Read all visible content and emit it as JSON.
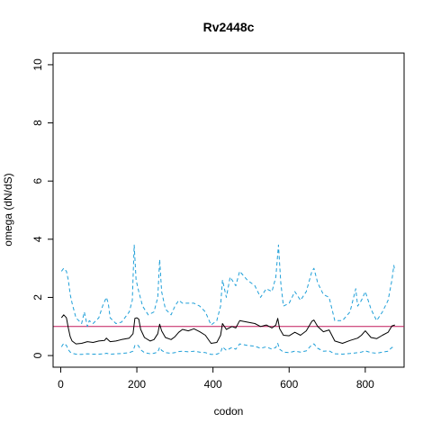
{
  "chart_data": {
    "type": "line",
    "title": "Rv2448c",
    "xlabel": "codon",
    "ylabel": "omega (dN/dS)",
    "xlim": [
      -20,
      902
    ],
    "ylim": [
      -0.4,
      10.4
    ],
    "x_ticks": [
      0,
      200,
      400,
      600,
      800
    ],
    "y_ticks": [
      0,
      2,
      4,
      6,
      8,
      10
    ],
    "x_tick_labels": [
      "0",
      "200",
      "400",
      "600",
      "800"
    ],
    "y_tick_labels": [
      "0",
      "2",
      "4",
      "6",
      "8",
      "10"
    ],
    "grid": false,
    "reference_line": {
      "y": 1.0,
      "color": "#c2185b"
    },
    "series": [
      {
        "style": "solid",
        "color": "#000000",
        "x": [
          2,
          8,
          15,
          20,
          25,
          30,
          40,
          55,
          70,
          85,
          100,
          115,
          120,
          130,
          145,
          160,
          180,
          190,
          195,
          200,
          205,
          210,
          220,
          235,
          245,
          255,
          260,
          265,
          275,
          290,
          300,
          310,
          320,
          335,
          350,
          365,
          380,
          395,
          410,
          420,
          425,
          435,
          450,
          460,
          470,
          490,
          510,
          525,
          540,
          555,
          565,
          570,
          575,
          585,
          600,
          615,
          630,
          645,
          660,
          665,
          675,
          690,
          705,
          720,
          740,
          760,
          780,
          790,
          800,
          815,
          830,
          845,
          860,
          870,
          878
        ],
        "y": [
          1.3,
          1.4,
          1.3,
          0.95,
          0.65,
          0.5,
          0.4,
          0.42,
          0.48,
          0.45,
          0.5,
          0.52,
          0.6,
          0.48,
          0.5,
          0.55,
          0.6,
          0.75,
          1.28,
          1.3,
          1.25,
          0.9,
          0.62,
          0.5,
          0.55,
          0.75,
          1.08,
          0.85,
          0.62,
          0.55,
          0.65,
          0.8,
          0.9,
          0.85,
          0.92,
          0.82,
          0.7,
          0.42,
          0.45,
          0.7,
          1.1,
          0.9,
          1.0,
          0.95,
          1.2,
          1.15,
          1.1,
          1.0,
          1.05,
          0.95,
          1.05,
          1.28,
          0.92,
          0.7,
          0.68,
          0.8,
          0.7,
          0.85,
          1.18,
          1.22,
          1.0,
          0.82,
          0.88,
          0.5,
          0.42,
          0.52,
          0.6,
          0.7,
          0.85,
          0.62,
          0.58,
          0.7,
          0.8,
          1.02,
          1.05
        ]
      },
      {
        "style": "dashed",
        "color": "#1e9fd8",
        "x": [
          2,
          8,
          15,
          20,
          25,
          30,
          40,
          55,
          62,
          70,
          75,
          85,
          100,
          110,
          120,
          125,
          130,
          145,
          160,
          180,
          188,
          193,
          198,
          205,
          215,
          230,
          245,
          255,
          260,
          265,
          275,
          290,
          300,
          310,
          320,
          335,
          350,
          365,
          380,
          395,
          410,
          420,
          425,
          435,
          445,
          460,
          470,
          490,
          510,
          525,
          540,
          555,
          565,
          572,
          578,
          585,
          600,
          615,
          630,
          645,
          660,
          665,
          675,
          690,
          705,
          720,
          740,
          760,
          775,
          780,
          790,
          800,
          815,
          830,
          845,
          860,
          870,
          875,
          878
        ],
        "y": [
          2.9,
          3.0,
          2.9,
          2.6,
          2.1,
          1.8,
          1.3,
          1.1,
          1.5,
          1.0,
          1.2,
          1.1,
          1.3,
          1.7,
          2.0,
          1.8,
          1.3,
          1.1,
          1.15,
          1.5,
          1.9,
          3.8,
          2.6,
          2.2,
          1.7,
          1.4,
          1.5,
          2.0,
          3.3,
          2.2,
          1.6,
          1.4,
          1.7,
          1.9,
          1.8,
          1.8,
          1.8,
          1.7,
          1.5,
          1.05,
          1.2,
          1.7,
          2.6,
          2.0,
          2.7,
          2.4,
          2.9,
          2.6,
          2.4,
          2.0,
          2.3,
          2.2,
          2.7,
          3.8,
          2.5,
          1.7,
          1.8,
          2.2,
          1.9,
          2.2,
          2.9,
          3.0,
          2.5,
          2.1,
          2.0,
          1.2,
          1.2,
          1.5,
          2.3,
          1.7,
          1.9,
          2.2,
          1.6,
          1.2,
          1.5,
          1.9,
          2.6,
          3.1,
          2.9
        ]
      },
      {
        "style": "dashed",
        "color": "#1e9fd8",
        "x": [
          2,
          8,
          15,
          20,
          25,
          30,
          40,
          55,
          70,
          85,
          100,
          115,
          120,
          130,
          145,
          160,
          180,
          190,
          195,
          200,
          205,
          210,
          220,
          235,
          245,
          255,
          260,
          265,
          275,
          290,
          300,
          310,
          320,
          335,
          350,
          365,
          380,
          395,
          410,
          420,
          425,
          435,
          450,
          460,
          470,
          490,
          510,
          525,
          540,
          555,
          565,
          570,
          575,
          585,
          600,
          615,
          630,
          645,
          660,
          665,
          675,
          690,
          705,
          720,
          740,
          760,
          780,
          790,
          800,
          815,
          830,
          845,
          860,
          870,
          878
        ],
        "y": [
          0.3,
          0.42,
          0.35,
          0.2,
          0.12,
          0.08,
          0.05,
          0.04,
          0.06,
          0.05,
          0.05,
          0.06,
          0.08,
          0.05,
          0.06,
          0.07,
          0.1,
          0.15,
          0.35,
          0.38,
          0.32,
          0.2,
          0.1,
          0.06,
          0.08,
          0.12,
          0.28,
          0.18,
          0.1,
          0.08,
          0.1,
          0.14,
          0.15,
          0.13,
          0.15,
          0.12,
          0.1,
          0.04,
          0.05,
          0.1,
          0.3,
          0.18,
          0.28,
          0.22,
          0.4,
          0.35,
          0.32,
          0.25,
          0.3,
          0.22,
          0.28,
          0.42,
          0.22,
          0.12,
          0.1,
          0.15,
          0.12,
          0.16,
          0.38,
          0.4,
          0.25,
          0.15,
          0.16,
          0.06,
          0.05,
          0.07,
          0.1,
          0.12,
          0.16,
          0.1,
          0.08,
          0.12,
          0.15,
          0.28,
          0.25
        ]
      }
    ]
  }
}
